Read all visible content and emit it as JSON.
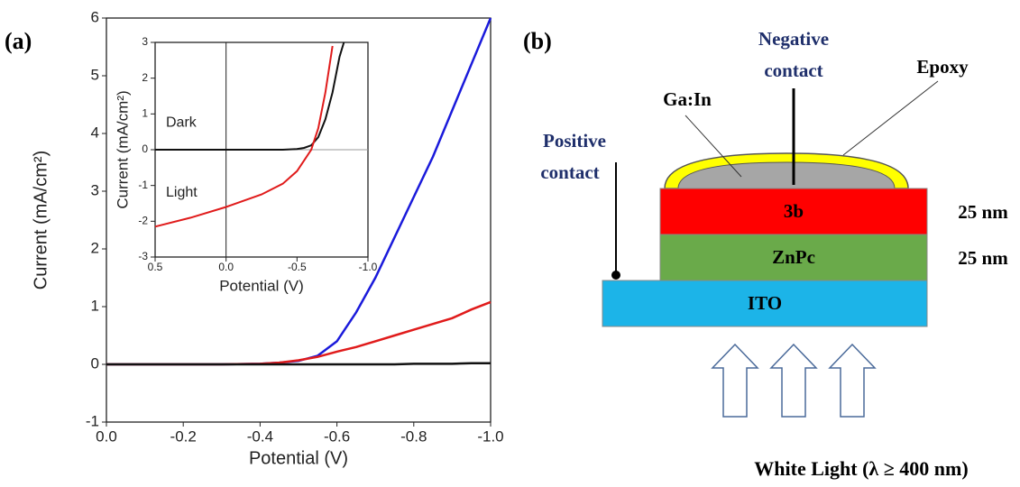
{
  "panel_labels": [
    "(a)",
    "(b)"
  ],
  "chart_data": [
    {
      "type": "line",
      "xlabel": "Potential (V)",
      "ylabel": "Current (mA/cm²)",
      "x": [
        0,
        -0.1,
        -0.2,
        -0.3,
        -0.4,
        -0.45,
        -0.5,
        -0.55,
        -0.6,
        -0.65,
        -0.7,
        -0.75,
        -0.8,
        -0.85,
        -0.9,
        -0.95,
        -1.0
      ],
      "series": [
        {
          "color": "#1a1adb",
          "values": [
            0,
            0,
            0,
            0,
            0.01,
            0.03,
            0.06,
            0.15,
            0.4,
            0.9,
            1.5,
            2.2,
            2.9,
            3.6,
            4.4,
            5.2,
            6.0
          ]
        },
        {
          "color": "#e01b1b",
          "values": [
            0,
            0,
            0,
            0,
            0.01,
            0.03,
            0.07,
            0.13,
            0.22,
            0.3,
            0.4,
            0.5,
            0.6,
            0.7,
            0.8,
            0.95,
            1.08
          ]
        },
        {
          "color": "#111111",
          "values": [
            0,
            0,
            0,
            0,
            0,
            0,
            0,
            0,
            0,
            0,
            0,
            0,
            0.01,
            0.01,
            0.01,
            0.02,
            0.02
          ]
        }
      ],
      "xlim": [
        0,
        -1.0
      ],
      "xticks": [
        {
          "value": 0,
          "label": "0.0"
        },
        -0.2,
        -0.4,
        -0.6,
        -0.8,
        {
          "value": -1.0,
          "label": "-1.0"
        }
      ],
      "ylim": [
        -1,
        6
      ],
      "yticks": [
        -1,
        0,
        1,
        2,
        3,
        4,
        5,
        6
      ]
    },
    {
      "type": "line",
      "xlabel": "Potential (V)",
      "ylabel": "Current (mA/cm²)",
      "annotations": [
        "Dark",
        "Light"
      ],
      "x": [
        0.5,
        0.25,
        0,
        -0.25,
        -0.4,
        -0.5,
        -0.55,
        -0.6,
        -0.65,
        -0.7,
        -0.75,
        -0.8,
        -0.83
      ],
      "series": [
        {
          "color": "#111111",
          "values": [
            0,
            0,
            0,
            0,
            0,
            0.02,
            0.05,
            0.12,
            0.35,
            0.85,
            1.6,
            2.6,
            3.0
          ]
        },
        {
          "color": "#e01b1b",
          "values": [
            -2.15,
            -1.9,
            -1.6,
            -1.25,
            -0.95,
            -0.6,
            -0.3,
            0,
            0.6,
            1.6,
            2.9,
            null,
            null
          ]
        }
      ],
      "xlim": [
        0.5,
        -1.0
      ],
      "xticks": [
        0.5,
        {
          "value": 0,
          "label": "0.0"
        },
        -0.5,
        {
          "value": -1.0,
          "label": "-1.0"
        }
      ],
      "ylim": [
        -3,
        3
      ],
      "yticks": [
        -3,
        -2,
        -1,
        0,
        1,
        2,
        3
      ]
    }
  ],
  "diagram": {
    "negative_contact": [
      "Negative",
      "contact"
    ],
    "positive_contact": [
      "Positive",
      "contact"
    ],
    "gain": "Ga:In",
    "epoxy": "Epoxy",
    "layers": [
      "3b",
      "ZnPc",
      "ITO"
    ],
    "thickness": [
      "25 nm",
      "25 nm"
    ],
    "light": "White Light (λ ≥ 400 nm)"
  }
}
